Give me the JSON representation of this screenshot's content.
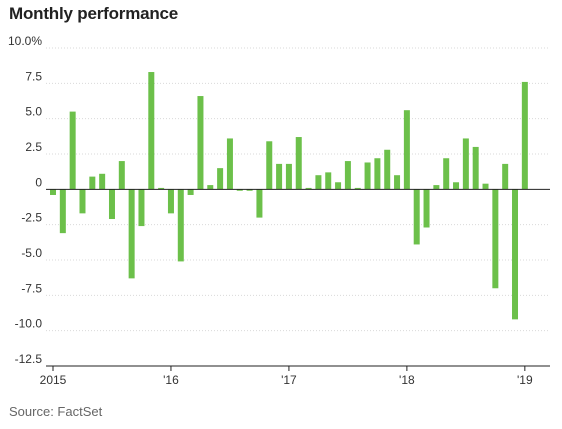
{
  "chart_data": {
    "type": "bar",
    "title": "Monthly performance",
    "source": "Source: FactSet",
    "ylim": [
      -12.5,
      10.0
    ],
    "yticks": [
      10.0,
      7.5,
      5.0,
      2.5,
      0,
      -2.5,
      -5.0,
      -7.5,
      -10.0,
      -12.5
    ],
    "ytick_labels": [
      "10.0%",
      "7.5",
      "5.0",
      "2.5",
      "0",
      "-2.5",
      "-5.0",
      "-7.5",
      "-10.0",
      "-12.5"
    ],
    "xtick_labels": [
      {
        "label": "2015",
        "month_index": 0
      },
      {
        "label": "'16",
        "month_index": 12
      },
      {
        "label": "'17",
        "month_index": 24
      },
      {
        "label": "'18",
        "month_index": 36
      },
      {
        "label": "'19",
        "month_index": 48
      }
    ],
    "grid": true,
    "bar_color": "#6cc04a",
    "values": [
      -0.4,
      -3.1,
      5.5,
      -1.7,
      0.9,
      1.1,
      -2.1,
      2.0,
      -6.3,
      -2.6,
      8.3,
      0.1,
      -1.7,
      -5.1,
      -0.4,
      6.6,
      0.3,
      1.5,
      3.6,
      -0.1,
      -0.1,
      -2.0,
      3.4,
      1.8,
      1.8,
      3.7,
      0.1,
      1.0,
      1.2,
      0.5,
      2.0,
      0.1,
      1.9,
      2.2,
      2.8,
      1.0,
      5.6,
      -3.9,
      -2.7,
      0.3,
      2.2,
      0.5,
      3.6,
      3.0,
      0.4,
      -7.0,
      1.8,
      -9.2,
      7.6
    ]
  }
}
